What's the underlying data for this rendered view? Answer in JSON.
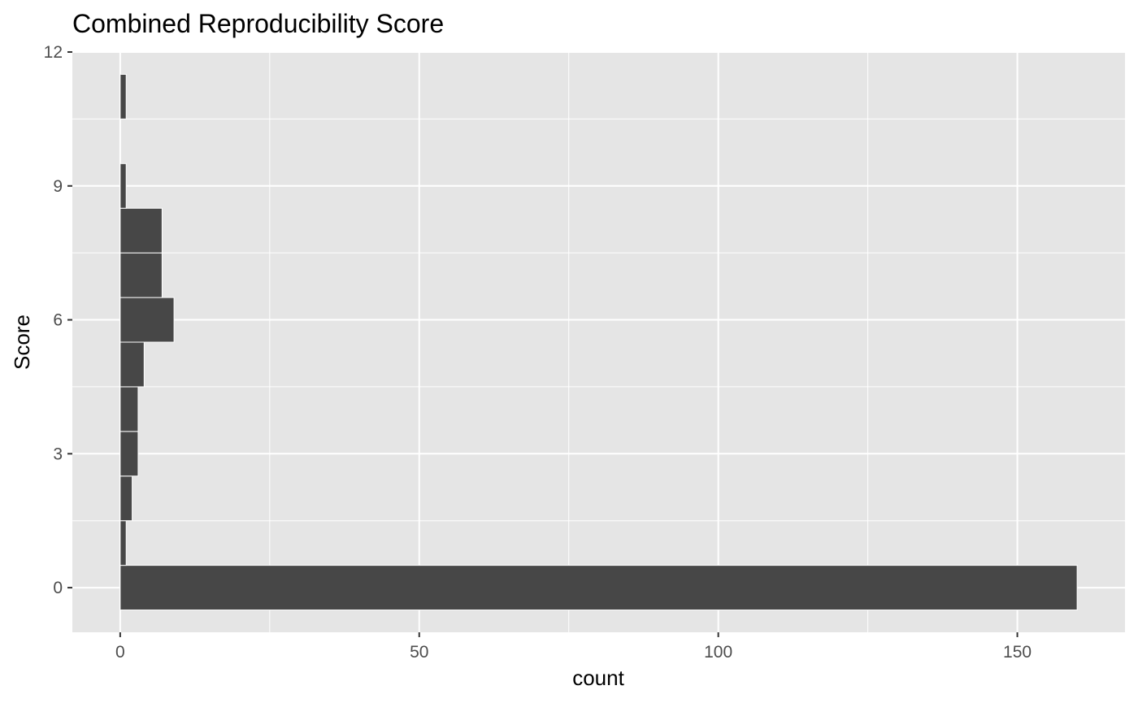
{
  "chart_data": {
    "type": "bar",
    "orientation": "horizontal",
    "title": "Combined Reproducibility Score",
    "xlabel": "count",
    "ylabel": "Score",
    "xlim": [
      -8,
      168
    ],
    "ylim": [
      -1,
      12
    ],
    "x_ticks": [
      "0",
      "50",
      "100",
      "150"
    ],
    "x_tick_values": [
      0,
      50,
      100,
      150
    ],
    "x_minor_values": [
      25,
      75,
      125
    ],
    "y_ticks": [
      "0",
      "3",
      "6",
      "9",
      "12"
    ],
    "y_tick_values": [
      0,
      3,
      6,
      9,
      12
    ],
    "y_minor_values": [
      1.5,
      4.5,
      7.5,
      10.5
    ],
    "bin_width": 1,
    "categories": [
      0,
      1,
      2,
      3,
      4,
      5,
      6,
      7,
      8,
      9,
      10,
      11
    ],
    "values": [
      160,
      1,
      2,
      3,
      3,
      4,
      9,
      7,
      7,
      1,
      0,
      1
    ],
    "grid": true,
    "colors": {
      "bar": "#474747",
      "panel": "#e5e5e5",
      "grid": "#ffffff"
    }
  }
}
